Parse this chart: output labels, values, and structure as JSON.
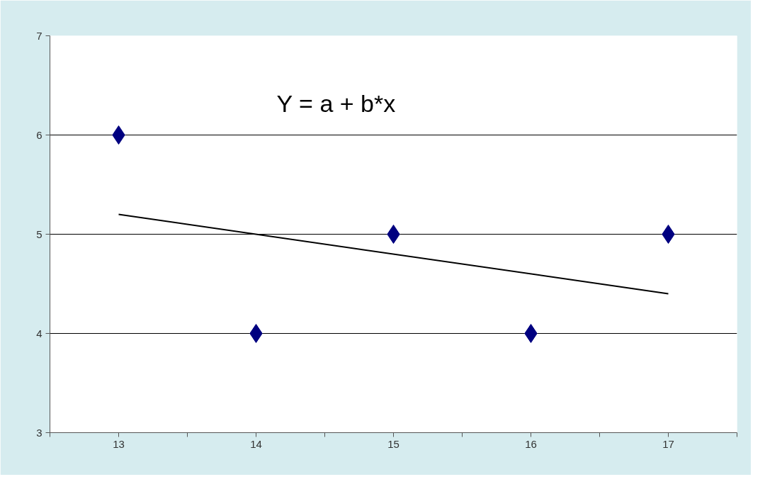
{
  "chart_data": {
    "type": "scatter",
    "series": [
      {
        "color": "#000080",
        "marker": "diamond",
        "x": [
          13,
          14,
          15,
          16,
          17
        ],
        "values": [
          6,
          4,
          5,
          4,
          5
        ]
      },
      {
        "type": "line",
        "color": "#000000",
        "line_style": "solid",
        "x": [
          13,
          17
        ],
        "values": [
          5.2,
          4.4
        ]
      }
    ],
    "annotations": [
      "Y = a + b*x"
    ],
    "xlim": [
      12.5,
      17.5
    ],
    "xticks": [
      {
        "value": 12.5,
        "label": null
      },
      13,
      {
        "value": 13.5,
        "label": null
      },
      14,
      {
        "value": 14.5,
        "label": null
      },
      15,
      {
        "value": 15.5,
        "label": null
      },
      16,
      {
        "value": 16.5,
        "label": null
      },
      17,
      {
        "value": 17.5,
        "label": null
      }
    ],
    "ylim": [
      3,
      7
    ],
    "yticks": [
      3,
      4,
      5,
      6,
      7
    ],
    "grid": "y"
  }
}
